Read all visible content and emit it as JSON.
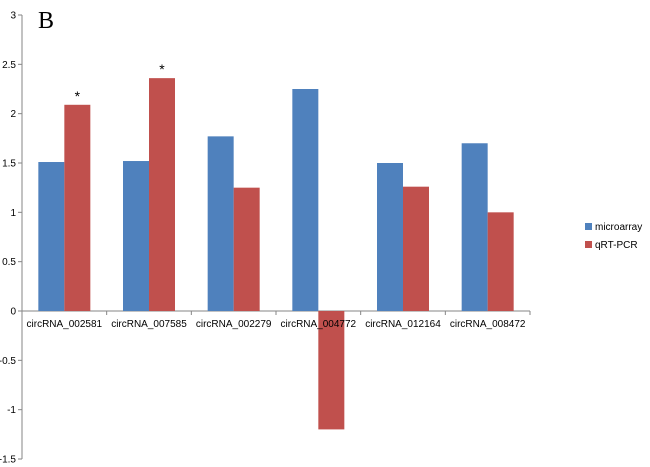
{
  "panel_label": "B",
  "chart_data": {
    "type": "bar",
    "categories": [
      "circRNA_002581",
      "circRNA_007585",
      "circRNA_002279",
      "circRNA_004772",
      "circRNA_012164",
      "circRNA_008472"
    ],
    "series": [
      {
        "name": "microarray",
        "color": "#4F81BD",
        "values": [
          1.51,
          1.52,
          1.77,
          2.25,
          1.5,
          1.7
        ]
      },
      {
        "name": "qRT-PCR",
        "color": "#C0504D",
        "values": [
          2.09,
          2.36,
          1.25,
          -1.2,
          1.26,
          1.0
        ]
      }
    ],
    "annotations": [
      {
        "category": "circRNA_002581",
        "series": "qRT-PCR",
        "text": "*"
      },
      {
        "category": "circRNA_007585",
        "series": "qRT-PCR",
        "text": "*"
      }
    ],
    "y_ticks": [
      "3",
      "2.5",
      "2",
      "1.5",
      "1",
      "0.5",
      "0",
      "-0.5",
      "-1",
      "-1.5"
    ],
    "ylim": [
      -1.5,
      3
    ],
    "grid": false,
    "legend": "right"
  }
}
